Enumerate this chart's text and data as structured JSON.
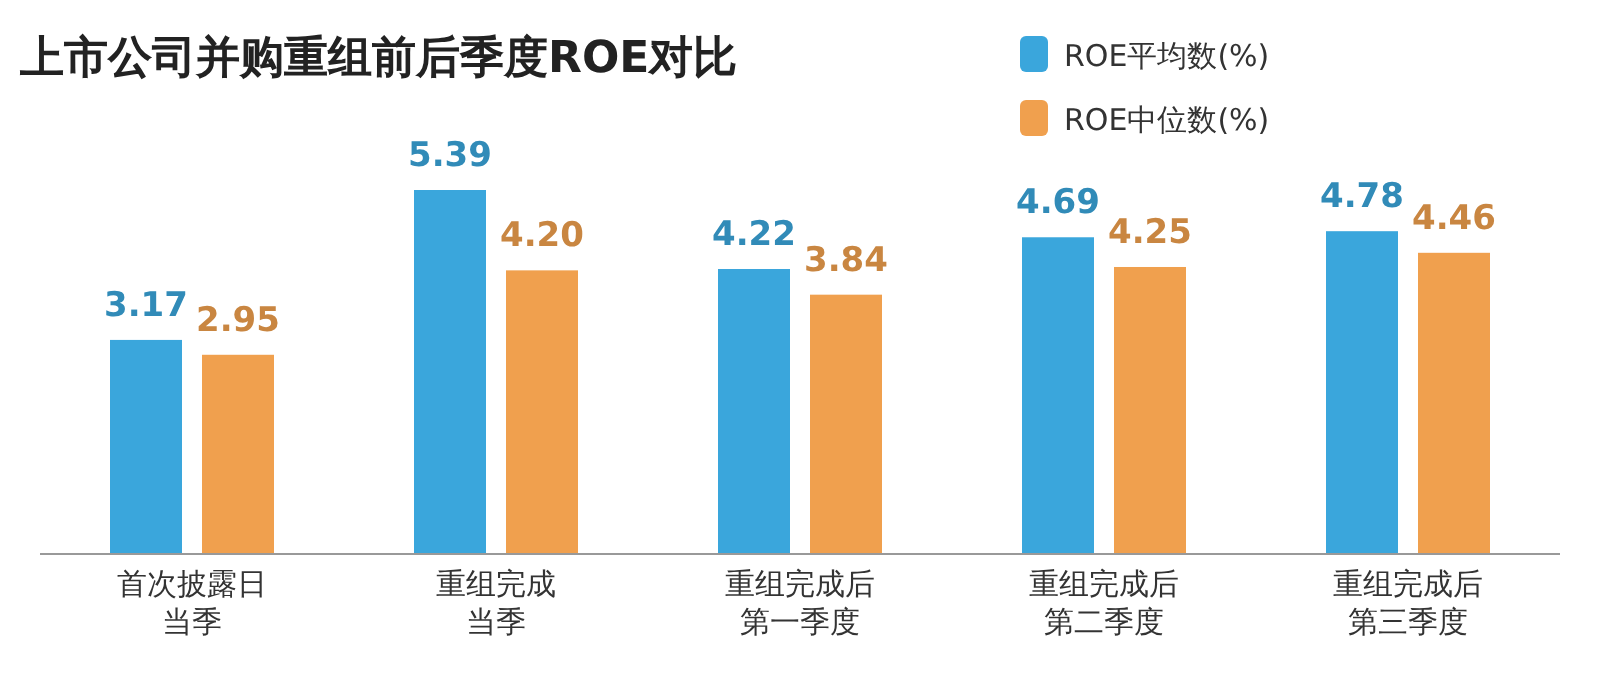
{
  "chart_data": {
    "type": "bar",
    "title": "上市公司并购重组前后季度ROE对比",
    "categories": [
      "首次披露日当季",
      "重组完成当季",
      "重组完成后第一季度",
      "重组完成后第二季度",
      "重组完成后第三季度"
    ],
    "series": [
      {
        "name": "ROE平均数(%)",
        "color": "#3aa6dc",
        "values": [
          3.17,
          5.39,
          4.22,
          4.69,
          4.78
        ],
        "value_labels": [
          "3.17",
          "5.39",
          "4.22",
          "4.69",
          "4.78"
        ]
      },
      {
        "name": "ROE中位数(%)",
        "color": "#f0a04e",
        "values": [
          2.95,
          4.2,
          3.84,
          4.25,
          4.46
        ],
        "value_labels": [
          "2.95",
          "4.20",
          "3.84",
          "4.25",
          "4.46"
        ]
      }
    ],
    "legend": "top right"
  }
}
